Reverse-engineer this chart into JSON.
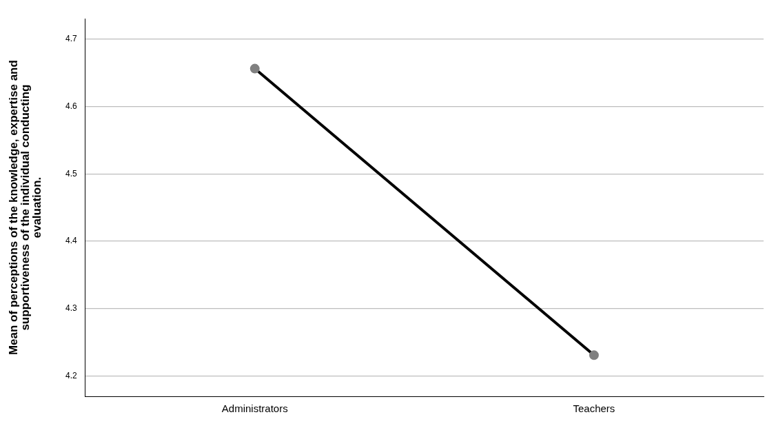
{
  "chart_data": {
    "type": "line",
    "ylabel": "Mean of perceptions of the knowledge, expertise and supportiveness of the individual conducting evaluation.",
    "categories": [
      "Administrators",
      "Teachers"
    ],
    "series": [
      {
        "color": "#000000",
        "values": [
          4.656,
          4.231
        ]
      }
    ],
    "ylim": [
      4.17,
      4.73
    ],
    "yticks": [
      4.2,
      4.3,
      4.4,
      4.5,
      4.6,
      4.7
    ],
    "grid": "y",
    "legend": false,
    "marker": "circle",
    "line_style": "solid"
  }
}
